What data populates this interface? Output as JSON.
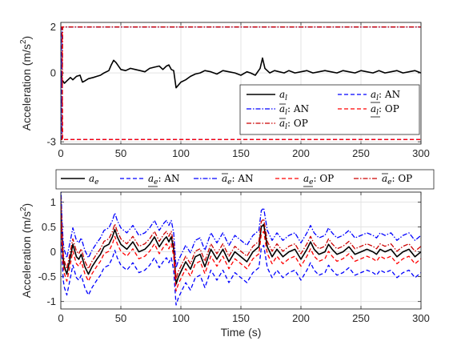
{
  "chart_data": [
    {
      "type": "line",
      "xlim": [
        0,
        300
      ],
      "ylim": [
        -3.1,
        2.2
      ],
      "xticks": [
        "0",
        "50",
        "100",
        "150",
        "200",
        "250",
        "300"
      ],
      "yticks": [
        {
          "v": -3,
          "label": "-3"
        },
        {
          "v": 0,
          "label": "0"
        },
        {
          "v": 2,
          "label": "2"
        }
      ],
      "ylabel_main": "Acceleration (m/s",
      "ylabel_sup": "2",
      "ylabel_tail": ")",
      "grid": true,
      "legend_position": "bottom-right, inside",
      "legend": [
        {
          "sym": "a",
          "sub": "l",
          "bar": "",
          "suffix": "",
          "color": "#000000",
          "dash": "",
          "width": 1.6
        },
        {
          "sym": "a",
          "sub": "l",
          "bar": "under",
          "suffix": ": AN",
          "color": "#0000ff",
          "dash": "5,3",
          "width": 1.3
        },
        {
          "sym": "a",
          "sub": "l",
          "bar": "over",
          "suffix": ": AN",
          "color": "#0000ff",
          "dash": "6,2,1.5,2",
          "width": 1.3
        },
        {
          "sym": "a",
          "sub": "l",
          "bar": "under",
          "suffix": ": OP",
          "color": "#ff0000",
          "dash": "5,3",
          "width": 1.3
        },
        {
          "sym": "a",
          "sub": "l",
          "bar": "over",
          "suffix": ": OP",
          "color": "#cc0000",
          "dash": "6,2,1.5,2",
          "width": 1.3
        }
      ],
      "series": [
        {
          "color": "#000000",
          "dash": "",
          "width": 1.6,
          "x": [
            0,
            1,
            3,
            5,
            8,
            10,
            13,
            16,
            18,
            20,
            23,
            27,
            30,
            33,
            36,
            40,
            42,
            44,
            46,
            50,
            54,
            58,
            62,
            66,
            70,
            74,
            78,
            82,
            85,
            88,
            90,
            92,
            94,
            96,
            100,
            104,
            108,
            112,
            116,
            120,
            125,
            130,
            135,
            140,
            145,
            150,
            155,
            158,
            162,
            166,
            168,
            170,
            174,
            178,
            182,
            186,
            190,
            195,
            200,
            205,
            210,
            215,
            220,
            225,
            230,
            235,
            240,
            245,
            250,
            255,
            260,
            265,
            270,
            275,
            280,
            285,
            290,
            295,
            300
          ],
          "y": [
            0.1,
            -0.3,
            -0.45,
            -0.35,
            -0.2,
            -0.3,
            -0.15,
            -0.1,
            -0.4,
            -0.35,
            -0.25,
            -0.2,
            -0.15,
            -0.1,
            0.0,
            0.1,
            0.35,
            0.55,
            0.45,
            0.15,
            0.1,
            0.2,
            0.15,
            0.1,
            0.05,
            0.2,
            0.25,
            0.3,
            0.15,
            0.3,
            0.35,
            0.15,
            0.1,
            -0.65,
            -0.4,
            -0.3,
            -0.15,
            -0.05,
            0.0,
            0.1,
            0.05,
            -0.05,
            0.1,
            0.05,
            0.0,
            -0.1,
            0.05,
            0.0,
            -0.1,
            0.2,
            0.65,
            0.2,
            0.0,
            0.1,
            0.05,
            0.0,
            0.1,
            0.0,
            0.05,
            0.1,
            0.0,
            0.05,
            0.1,
            0.05,
            0.0,
            0.1,
            0.05,
            0.0,
            0.1,
            0.05,
            0.0,
            0.1,
            0.0,
            0.05,
            0.1,
            0.0,
            0.05,
            0.1,
            0.0
          ]
        },
        {
          "color": "#0000ff",
          "dash": "5,3",
          "width": 1.3,
          "x": [
            0,
            0.6,
            1,
            300
          ],
          "y": [
            2.0,
            2.0,
            -2.9,
            -2.9
          ]
        },
        {
          "color": "#0000ff",
          "dash": "6,2,1.5,2",
          "width": 1.3,
          "x": [
            0,
            0.6,
            1,
            300
          ],
          "y": [
            -2.9,
            -2.9,
            2.0,
            2.0
          ]
        },
        {
          "color": "#ff0000",
          "dash": "5,3",
          "width": 1.3,
          "x": [
            0,
            1,
            1.5,
            300
          ],
          "y": [
            2.0,
            2.0,
            -2.9,
            -2.9
          ]
        },
        {
          "color": "#cc0000",
          "dash": "6,2,1.5,2",
          "width": 1.3,
          "x": [
            0,
            1,
            1.5,
            300
          ],
          "y": [
            -2.9,
            -2.9,
            2.0,
            2.0
          ]
        }
      ]
    },
    {
      "type": "line",
      "xlim": [
        0,
        300
      ],
      "ylim": [
        -1.15,
        1.2
      ],
      "xticks": [
        "0",
        "50",
        "100",
        "150",
        "200",
        "250",
        "300"
      ],
      "yticks": [
        {
          "v": -1,
          "label": "-1"
        },
        {
          "v": -0.5,
          "label": "-0.5"
        },
        {
          "v": 0,
          "label": "0"
        },
        {
          "v": 0.5,
          "label": "0.5"
        },
        {
          "v": 1,
          "label": "1"
        }
      ],
      "xlabel": "Time (s)",
      "ylabel_main": "Acceleration (m/s",
      "ylabel_sup": "2",
      "ylabel_tail": ")",
      "grid": true,
      "legend_position": "top, outside, horizontal",
      "legend": [
        {
          "sym": "a",
          "sub": "e",
          "bar": "",
          "suffix": "",
          "color": "#000000",
          "dash": "",
          "width": 1.6
        },
        {
          "sym": "a",
          "sub": "e",
          "bar": "under",
          "suffix": ": AN",
          "color": "#0000ff",
          "dash": "5,3",
          "width": 1.3
        },
        {
          "sym": "a",
          "sub": "e",
          "bar": "over",
          "suffix": ": AN",
          "color": "#0000ff",
          "dash": "6,2,1.5,2",
          "width": 1.3
        },
        {
          "sym": "a",
          "sub": "e",
          "bar": "under",
          "suffix": ": OP",
          "color": "#ff0000",
          "dash": "5,3",
          "width": 1.3
        },
        {
          "sym": "a",
          "sub": "e",
          "bar": "over",
          "suffix": ": OP",
          "color": "#cc0000",
          "dash": "6,2,1.5,2",
          "width": 1.3
        }
      ],
      "base": {
        "x": [
          0,
          1,
          2,
          3,
          5,
          8,
          10,
          13,
          15,
          17,
          20,
          23,
          26,
          30,
          33,
          36,
          40,
          43,
          45,
          47,
          50,
          55,
          60,
          65,
          70,
          74,
          78,
          82,
          86,
          88,
          90,
          92,
          94,
          96,
          98,
          100,
          104,
          108,
          112,
          116,
          120,
          125,
          130,
          135,
          140,
          145,
          150,
          155,
          160,
          165,
          167,
          169,
          172,
          176,
          180,
          185,
          190,
          195,
          200,
          205,
          208,
          211,
          215,
          220,
          223,
          226,
          230,
          235,
          240,
          245,
          250,
          255,
          260,
          263,
          266,
          270,
          275,
          280,
          285,
          290,
          295,
          300
        ],
        "y": [
          1.0,
          0.3,
          -0.15,
          -0.3,
          -0.45,
          -0.1,
          0.15,
          -0.1,
          -0.15,
          -0.05,
          -0.3,
          -0.45,
          -0.3,
          -0.15,
          -0.05,
          0.1,
          0.15,
          0.3,
          0.45,
          0.3,
          0.15,
          0.05,
          0.2,
          0.0,
          0.05,
          0.15,
          0.3,
          0.1,
          0.25,
          0.3,
          0.2,
          0.3,
          0.05,
          -0.65,
          -0.5,
          -0.4,
          -0.2,
          -0.35,
          -0.1,
          -0.05,
          -0.3,
          0.05,
          -0.15,
          0.05,
          -0.2,
          0.0,
          -0.1,
          -0.2,
          0.0,
          0.1,
          0.5,
          0.55,
          0.1,
          -0.1,
          0.05,
          -0.1,
          0.0,
          0.05,
          -0.15,
          0.05,
          0.2,
          0.05,
          -0.05,
          0.0,
          0.15,
          0.05,
          -0.05,
          0.0,
          0.1,
          -0.05,
          0.0,
          0.05,
          0.0,
          -0.05,
          0.05,
          0.0,
          0.05,
          -0.1,
          0.0,
          0.05,
          -0.1,
          0.0
        ]
      },
      "series": [
        {
          "color": "#000000",
          "dash": "",
          "width": 1.6,
          "offset": 0
        },
        {
          "color": "#0000ff",
          "dash": "5,3",
          "width": 1.3,
          "offset": -0.42
        },
        {
          "color": "#0000ff",
          "dash": "6,2,1.5,2",
          "width": 1.3,
          "offset": 0.33
        },
        {
          "color": "#ff0000",
          "dash": "5,3",
          "width": 1.3,
          "offset": -0.14
        },
        {
          "color": "#cc0000",
          "dash": "6,2,1.5,2",
          "width": 1.3,
          "offset": 0.11
        }
      ]
    }
  ]
}
